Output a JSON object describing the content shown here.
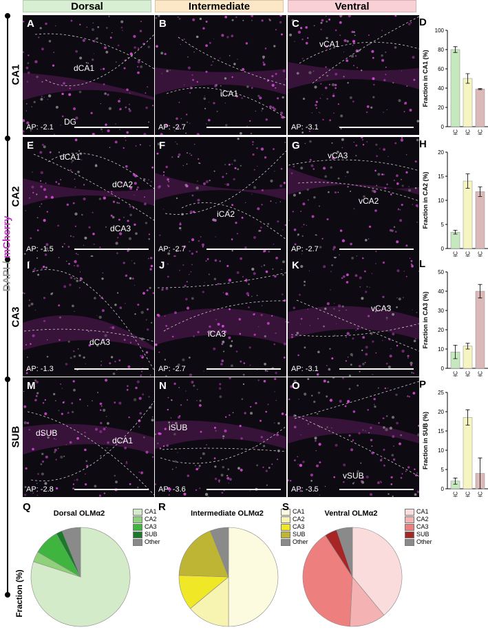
{
  "columns": [
    "Dorsal",
    "Intermediate",
    "Ventral"
  ],
  "rows": [
    "CA1",
    "CA2",
    "CA3",
    "SUB"
  ],
  "stain": {
    "dapi": "DAPI",
    "sep": " / ",
    "mcherry": "mCherry"
  },
  "panels": [
    {
      "letter": "A",
      "ap": "AP: -2.1",
      "labels": [
        {
          "t": "dCA1",
          "x": 74,
          "y": 70
        },
        {
          "t": "DG",
          "x": 60,
          "y": 148
        }
      ]
    },
    {
      "letter": "B",
      "ap": "AP: -2.7",
      "labels": [
        {
          "t": "iCA1",
          "x": 95,
          "y": 107
        }
      ]
    },
    {
      "letter": "C",
      "ap": "AP: -3.1",
      "labels": [
        {
          "t": "vCA1",
          "x": 46,
          "y": 35
        }
      ]
    },
    {
      "letter": "E",
      "ap": "AP: -1.5",
      "labels": [
        {
          "t": "dCA1",
          "x": 54,
          "y": 22
        },
        {
          "t": "dCA2",
          "x": 130,
          "y": 62
        },
        {
          "t": "dCA3",
          "x": 127,
          "y": 126
        }
      ]
    },
    {
      "letter": "F",
      "ap": "AP: -2.7",
      "labels": [
        {
          "t": "iCA2",
          "x": 90,
          "y": 105
        }
      ]
    },
    {
      "letter": "G",
      "ap": "AP: -2.7",
      "labels": [
        {
          "t": "vCA3",
          "x": 58,
          "y": 20
        },
        {
          "t": "vCA2",
          "x": 103,
          "y": 86
        }
      ]
    },
    {
      "letter": "I",
      "ap": "AP: -1.3",
      "labels": [
        {
          "t": "dCA3",
          "x": 97,
          "y": 117
        }
      ]
    },
    {
      "letter": "J",
      "ap": "AP: -2.7",
      "labels": [
        {
          "t": "iCA3",
          "x": 77,
          "y": 105
        }
      ]
    },
    {
      "letter": "K",
      "ap": "AP: -3.1",
      "labels": [
        {
          "t": "vCA3",
          "x": 121,
          "y": 68
        }
      ]
    },
    {
      "letter": "M",
      "ap": "AP: -2.8",
      "labels": [
        {
          "t": "dSUB",
          "x": 19,
          "y": 74
        },
        {
          "t": "dCA1",
          "x": 130,
          "y": 85
        }
      ]
    },
    {
      "letter": "N",
      "ap": "AP: -3.6",
      "labels": [
        {
          "t": "iSUB",
          "x": 20,
          "y": 66
        }
      ]
    },
    {
      "letter": "O",
      "ap": "AP: -3.5",
      "labels": [
        {
          "t": "vSUB",
          "x": 80,
          "y": 136
        }
      ]
    }
  ],
  "chart_data": [
    {
      "type": "bar",
      "letter": "D",
      "categories": [
        "dHC",
        "iHC",
        "vHC"
      ],
      "values": [
        80,
        50,
        39
      ],
      "errors": [
        3,
        5,
        0.5
      ],
      "ylabel": "Fraction in CA1 (%)",
      "ylim": [
        0,
        100
      ],
      "yticks": [
        0,
        20,
        40,
        60,
        80,
        100
      ],
      "colors": [
        "#c6e8bf",
        "#f6f5c2",
        "#dcb9b9"
      ]
    },
    {
      "type": "bar",
      "letter": "H",
      "categories": [
        "dHC",
        "iHC",
        "vHC"
      ],
      "values": [
        3.4,
        14,
        11.8
      ],
      "errors": [
        0.4,
        1.5,
        1
      ],
      "ylabel": "Fraction in CA2 (%)",
      "ylim": [
        0,
        20
      ],
      "yticks": [
        0,
        5,
        10,
        15,
        20
      ],
      "colors": [
        "#c6e8bf",
        "#f6f5c2",
        "#dcb9b9"
      ]
    },
    {
      "type": "bar",
      "letter": "L",
      "categories": [
        "dHC",
        "iHC",
        "vHC"
      ],
      "values": [
        8.5,
        11.5,
        40
      ],
      "errors": [
        3.5,
        1.5,
        3.5
      ],
      "ylabel": "Fraction in CA3 (%)",
      "ylim": [
        0,
        50
      ],
      "yticks": [
        0,
        10,
        20,
        30,
        40,
        50
      ],
      "colors": [
        "#c6e8bf",
        "#f6f5c2",
        "#dcb9b9"
      ]
    },
    {
      "type": "bar",
      "letter": "P",
      "categories": [
        "dHC",
        "iHC",
        "vHC"
      ],
      "values": [
        2,
        18.5,
        4
      ],
      "errors": [
        0.8,
        2,
        4
      ],
      "ylabel": "Fraction in SUB (%)",
      "ylim": [
        0,
        25
      ],
      "yticks": [
        0,
        5,
        10,
        15,
        20,
        25
      ],
      "colors": [
        "#c6e8bf",
        "#f6f5c2",
        "#dcb9b9"
      ]
    },
    {
      "type": "pie",
      "letter": "Q",
      "title": "Dorsal OLMα2",
      "categories": [
        "CA1",
        "CA2",
        "CA3",
        "SUB",
        "Other"
      ],
      "values": [
        80,
        3.4,
        8.5,
        2,
        6.1
      ],
      "colors": [
        "#d4ebc9",
        "#8fd07a",
        "#3fb53f",
        "#1a7a2a",
        "#8a8a8a"
      ]
    },
    {
      "type": "pie",
      "letter": "R",
      "title": "Intermediate OLMα2",
      "categories": [
        "CA1",
        "CA2",
        "CA3",
        "SUB",
        "Other"
      ],
      "values": [
        50,
        14,
        11.5,
        18.5,
        6
      ],
      "colors": [
        "#fdfbdf",
        "#f7f3b0",
        "#f0e826",
        "#bdb533",
        "#8a8a8a"
      ]
    },
    {
      "type": "pie",
      "letter": "S",
      "title": "Ventral OLMα2",
      "categories": [
        "CA1",
        "CA2",
        "CA3",
        "SUB",
        "Other"
      ],
      "values": [
        39,
        11.8,
        40,
        4,
        5.2
      ],
      "colors": [
        "#fbdcdc",
        "#f5b2b2",
        "#ee7f7f",
        "#a82525",
        "#8a8a8a"
      ]
    }
  ],
  "pie_ylabel": "Fraction (%)"
}
